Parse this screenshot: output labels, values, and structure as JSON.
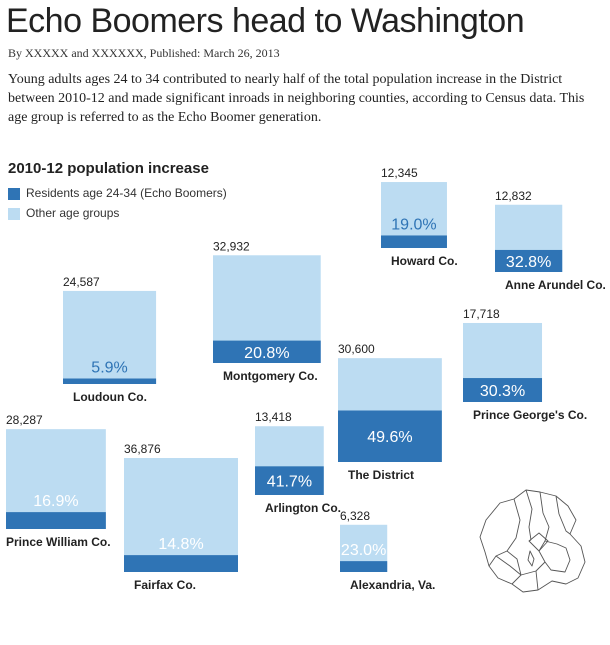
{
  "header": {
    "title": "Echo Boomers head to Washington",
    "byline": "By XXXXX and XXXXXX,",
    "published": "Published: March 26, 2013",
    "description": "Young adults ages 24 to 34 contributed to nearly half of the total population increase in the District between 2010-12 and made significant inroads in neighboring counties, according to Census data. This age group is referred to as the Echo Boomer generation."
  },
  "legend": {
    "title": "2010-12 population increase",
    "items": [
      {
        "label": "Residents age 24-34 (Echo Boomers)",
        "color": "#2f74b5"
      },
      {
        "label": "Other age groups",
        "color": "#bcdcf2"
      }
    ]
  },
  "colors": {
    "echo_boomers": "#2f74b5",
    "other": "#bcdcf2",
    "map_stroke": "#555555"
  },
  "map": {
    "icon": "dc-region-map-icon"
  },
  "chart_data": {
    "type": "bar",
    "title": "2010-12 population increase",
    "series": [
      {
        "name": "Residents age 24-34 (Echo Boomers)"
      },
      {
        "name": "Other age groups"
      }
    ],
    "areas": [
      {
        "name": "Howard Co.",
        "total": 12345,
        "total_label": "12,345",
        "echo_pct": 19.0,
        "pct_label": "19.0%"
      },
      {
        "name": "Anne Arundel Co.",
        "total": 12832,
        "total_label": "12,832",
        "echo_pct": 32.8,
        "pct_label": "32.8%"
      },
      {
        "name": "Loudoun Co.",
        "total": 24587,
        "total_label": "24,587",
        "echo_pct": 5.9,
        "pct_label": "5.9%"
      },
      {
        "name": "Montgomery Co.",
        "total": 32932,
        "total_label": "32,932",
        "echo_pct": 20.8,
        "pct_label": "20.8%"
      },
      {
        "name": "Prince George's Co.",
        "total": 17718,
        "total_label": "17,718",
        "echo_pct": 30.3,
        "pct_label": "30.3%"
      },
      {
        "name": "The District",
        "total": 30600,
        "total_label": "30,600",
        "echo_pct": 49.6,
        "pct_label": "49.6%"
      },
      {
        "name": "Prince William Co.",
        "total": 28287,
        "total_label": "28,287",
        "echo_pct": 16.9,
        "pct_label": "16.9%"
      },
      {
        "name": "Fairfax Co.",
        "total": 36876,
        "total_label": "36,876",
        "echo_pct": 14.8,
        "pct_label": "14.8%"
      },
      {
        "name": "Arlington Co.",
        "total": 13418,
        "total_label": "13,418",
        "echo_pct": 41.7,
        "pct_label": "41.7%"
      },
      {
        "name": "Alexandria, Va.",
        "total": 6328,
        "total_label": "6,328",
        "echo_pct": 23.0,
        "pct_label": "23.0%"
      }
    ]
  }
}
